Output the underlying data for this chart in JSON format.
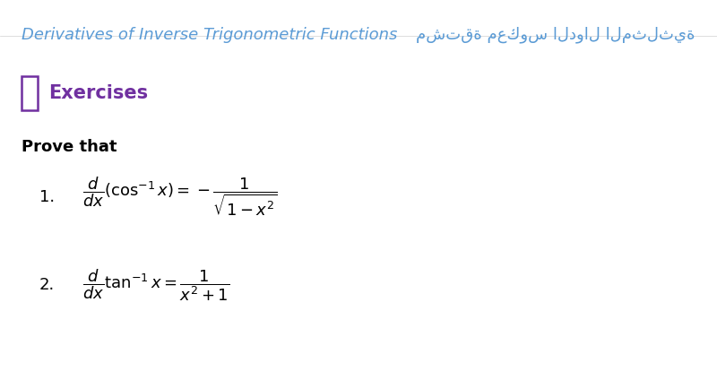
{
  "bg_color": "#ffffff",
  "title_left": "Derivatives of Inverse Trigonometric Functions",
  "title_right": "مشتقة معكوس الدوال المثلثية",
  "title_color": "#5b9bd5",
  "exercises_color": "#7030a0",
  "exercises_label": "Exercises",
  "prove_that": "Prove that",
  "formula1": "$\\dfrac{d}{dx}(\\cos^{-1}x) = -\\dfrac{1}{\\sqrt{1-x^2}}$",
  "formula2": "$\\dfrac{d}{dx}\\tan^{-1}x = \\dfrac{1}{x^2+1}$",
  "item1": "1.",
  "item2": "2.",
  "font_size_title": 13,
  "font_size_exercises": 15,
  "font_size_prove": 13,
  "font_size_formula": 13,
  "checkbox_color": "#7030a0",
  "text_color": "#000000"
}
